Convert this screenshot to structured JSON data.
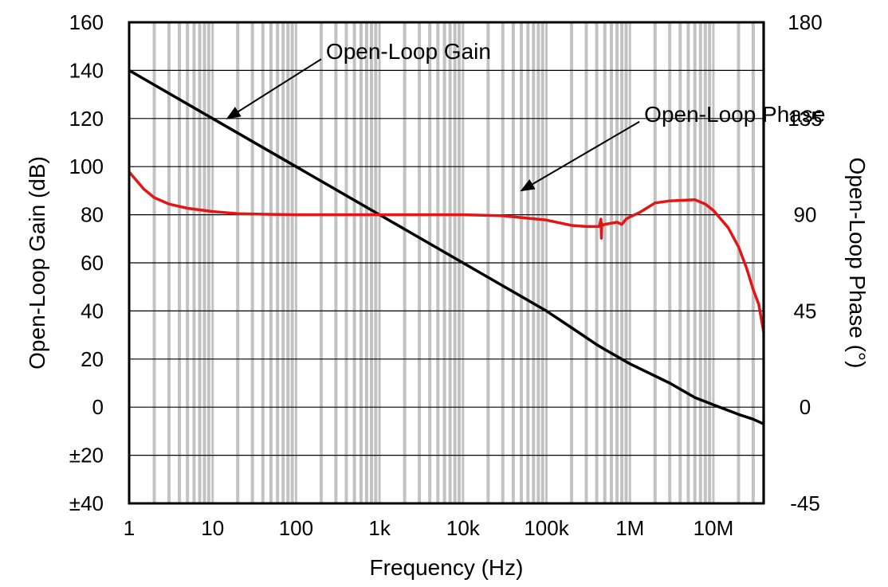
{
  "chart_data": {
    "type": "line",
    "xlabel": "Frequency (Hz)",
    "ylabel": "Open-Loop Gain (dB)",
    "y2label": "Open-Loop Phase (°)",
    "x_scale": "log",
    "xlim": [
      1,
      40000000
    ],
    "ylim": [
      -40,
      160
    ],
    "y2lim": [
      -45,
      180
    ],
    "grid": true,
    "x_ticks": [
      {
        "value": 1,
        "label": "1"
      },
      {
        "value": 10,
        "label": "10"
      },
      {
        "value": 100,
        "label": "100"
      },
      {
        "value": 1000,
        "label": "1k"
      },
      {
        "value": 10000,
        "label": "10k"
      },
      {
        "value": 100000,
        "label": "100k"
      },
      {
        "value": 1000000,
        "label": "1M"
      },
      {
        "value": 10000000,
        "label": "10M"
      }
    ],
    "y_ticks": [
      {
        "value": 160,
        "label": "160"
      },
      {
        "value": 140,
        "label": "140"
      },
      {
        "value": 120,
        "label": "120"
      },
      {
        "value": 100,
        "label": "100"
      },
      {
        "value": 80,
        "label": "80"
      },
      {
        "value": 60,
        "label": "60"
      },
      {
        "value": 40,
        "label": "40"
      },
      {
        "value": 20,
        "label": "20"
      },
      {
        "value": 0,
        "label": "0"
      },
      {
        "value": -20,
        "label": "±20"
      },
      {
        "value": -40,
        "label": "±40"
      }
    ],
    "y2_ticks": [
      {
        "value": 180,
        "label": "180"
      },
      {
        "value": 135,
        "label": "135"
      },
      {
        "value": 90,
        "label": "90"
      },
      {
        "value": 45,
        "label": "45"
      },
      {
        "value": 0,
        "label": "0"
      },
      {
        "value": -45,
        "label": "-45"
      }
    ],
    "series": [
      {
        "name": "Open-Loop Gain",
        "axis": "left",
        "color": "#000000",
        "x": [
          1,
          10,
          100,
          1000,
          10000,
          100000,
          200000,
          400000,
          500000,
          1000000,
          3000000,
          6000000,
          10000000,
          20000000,
          30000000,
          40000000
        ],
        "y": [
          140,
          120,
          100,
          80,
          60,
          40,
          33,
          26,
          24,
          18,
          10,
          4,
          1,
          -3,
          -5,
          -7
        ]
      },
      {
        "name": "Open-Loop Phase",
        "axis": "right",
        "color": "#e31515",
        "x": [
          1,
          1.5,
          2,
          3,
          5,
          10,
          20,
          50,
          100,
          1000,
          10000,
          30000,
          100000,
          200000,
          300000,
          430000,
          450000,
          455000,
          460000,
          470000,
          500000,
          700000,
          800000,
          900000,
          1000000,
          1300000,
          2000000,
          3000000,
          6000000,
          8000000,
          10000000,
          15000000,
          20000000,
          25000000,
          30000000,
          35000000,
          40000000
        ],
        "y": [
          110,
          102,
          98,
          95,
          93,
          91.5,
          90.5,
          90.2,
          90,
          90,
          90,
          89.5,
          87.5,
          85,
          84.5,
          84.5,
          88,
          79,
          86,
          85,
          85.5,
          86.5,
          85.5,
          88,
          89,
          91,
          95.5,
          96.5,
          97,
          95,
          92,
          84,
          75,
          65,
          55,
          48,
          35
        ]
      }
    ],
    "annotations": [
      {
        "text": "Open-Loop Gain",
        "x": 200,
        "y": 148,
        "arrow_to": {
          "x": 15,
          "y": 120
        }
      },
      {
        "text": "Open-Loop Phase",
        "x": 1300000,
        "y": 122,
        "arrow_to": {
          "x": 50000,
          "y": 90
        }
      }
    ]
  }
}
